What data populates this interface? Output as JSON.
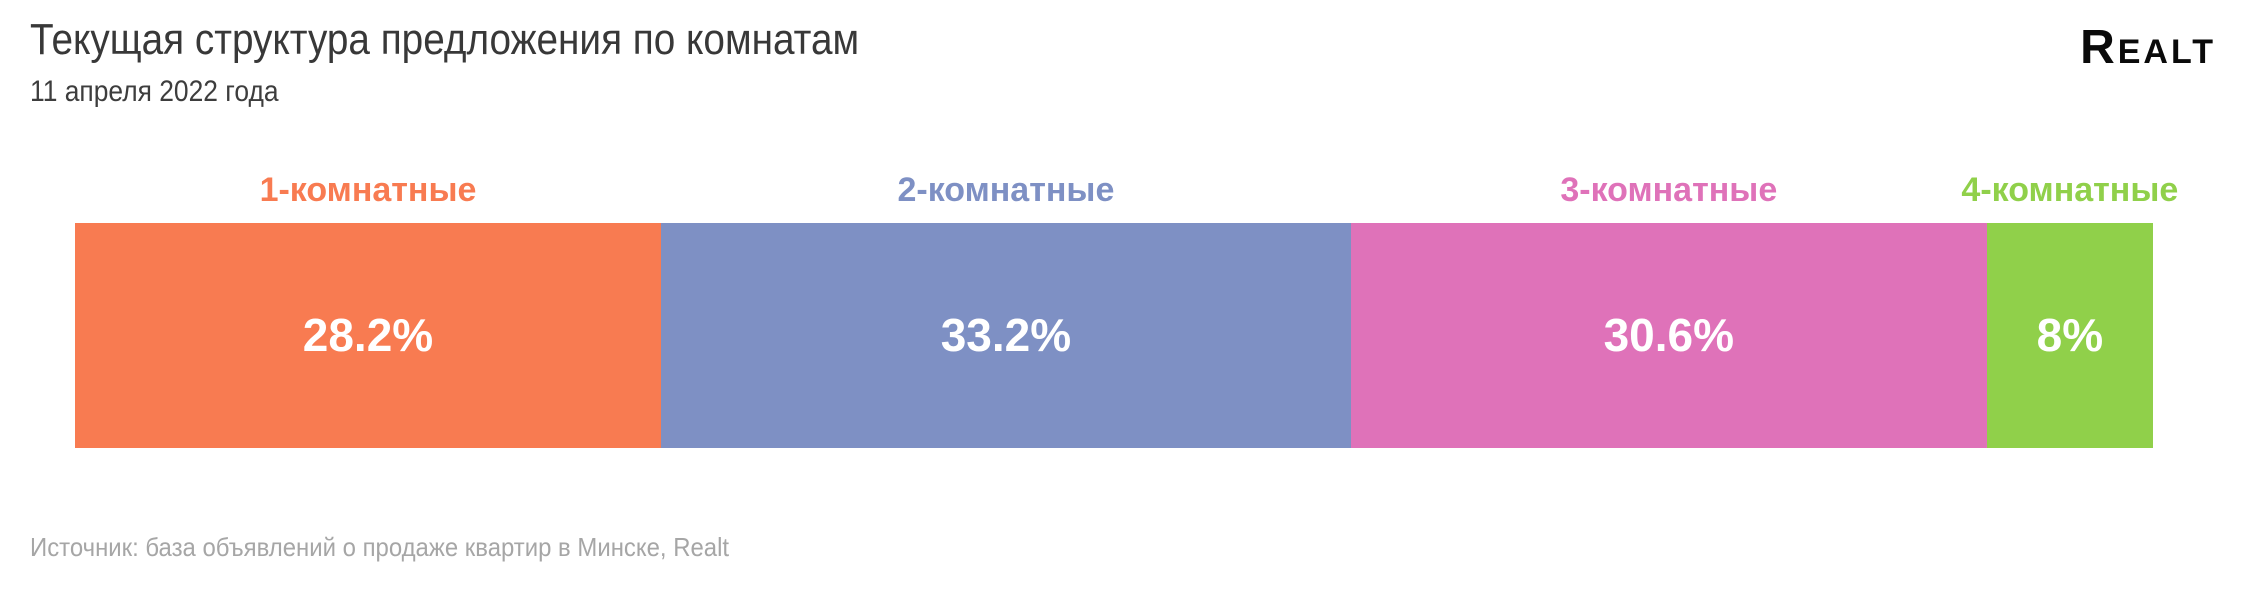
{
  "header": {
    "title": "Текущая структура предложения по комнатам",
    "subtitle": "11 апреля 2022 года",
    "logo_text": "Realt"
  },
  "chart_data": {
    "type": "bar",
    "variant": "horizontal-stacked-100pct",
    "title": "Текущая структура предложения по комнатам",
    "date_label": "11 апреля 2022 года",
    "categories": [
      "1-комнатные",
      "2-комнатные",
      "3-комнатные",
      "4-комнатные"
    ],
    "values": [
      28.2,
      33.2,
      30.6,
      8
    ],
    "value_labels": [
      "28.2%",
      "33.2%",
      "30.6%",
      "8%"
    ],
    "colors": [
      "#F87B51",
      "#7E90C4",
      "#DF72B9",
      "#90D04A"
    ],
    "value_text_color": "#FFFFFF",
    "axis_range": [
      0,
      100
    ],
    "unit": "%",
    "legend_position": "labels-above-segments",
    "grid": false
  },
  "source": {
    "text": "Источник: база объявлений о продаже квартир в Минске, Realt"
  }
}
